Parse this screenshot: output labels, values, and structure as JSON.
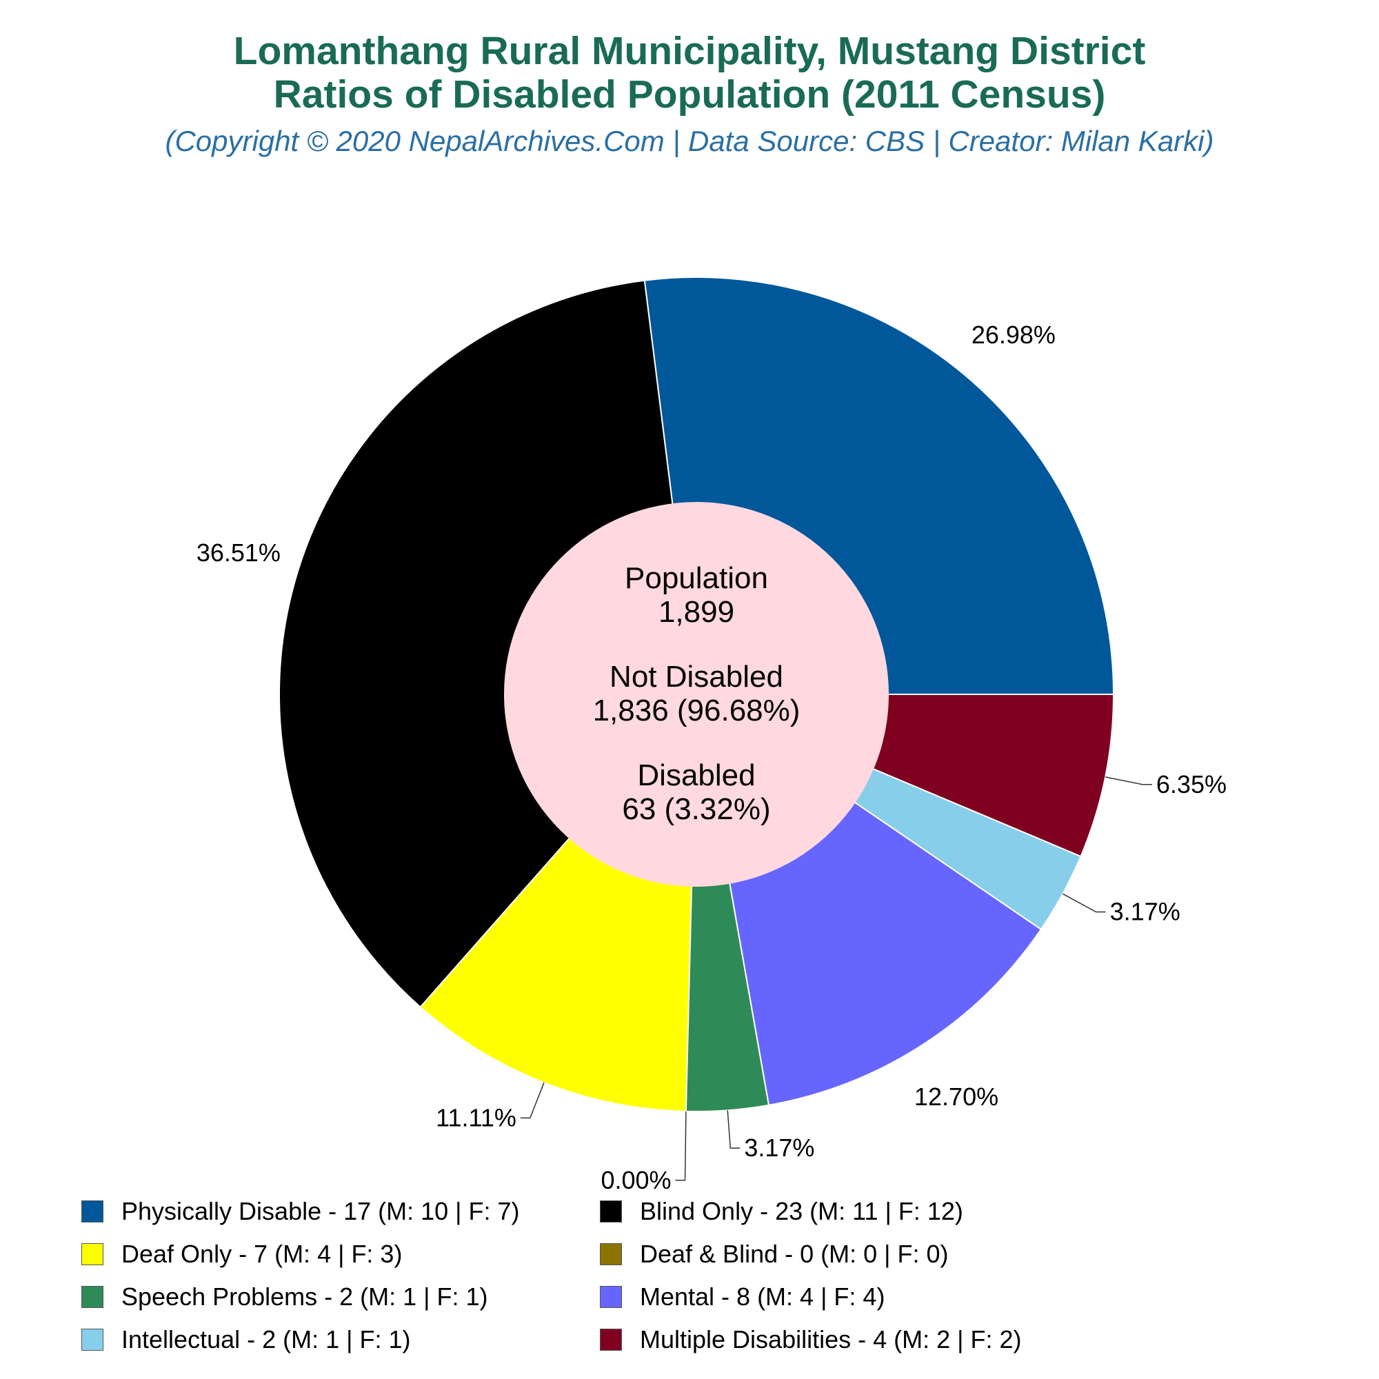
{
  "header": {
    "title_line_1": "Lomanthang Rural Municipality, Mustang District",
    "title_line_2": "Ratios of Disabled Population (2011 Census)",
    "subtitle": "(Copyright © 2020 NepalArchives.Com | Data Source: CBS | Creator: Milan Karki)"
  },
  "center": {
    "population_label": "Population",
    "population_value": "1,899",
    "not_disabled_label": "Not Disabled",
    "not_disabled_value": "1,836 (96.68%)",
    "disabled_label": "Disabled",
    "disabled_value": "63 (3.32%)"
  },
  "chart_data": {
    "type": "pie",
    "categories": [
      "Physically Disable",
      "Blind Only",
      "Deaf Only",
      "Deaf & Blind",
      "Speech Problems",
      "Mental",
      "Intellectual",
      "Multiple Disabilities"
    ],
    "values": [
      17,
      23,
      7,
      0,
      2,
      8,
      2,
      4
    ],
    "percent_labels": [
      "26.98%",
      "36.51%",
      "11.11%",
      "0.00%",
      "3.17%",
      "12.70%",
      "3.17%",
      "6.35%"
    ],
    "colors": [
      "#00589b",
      "#000000",
      "#ffff00",
      "#8b7500",
      "#2e8b57",
      "#6666ff",
      "#87ceeb",
      "#800020"
    ],
    "center_color": "#ffd9df",
    "legend": [
      {
        "label": "Physically Disable - 17 (M: 10 | F: 7)",
        "color": "#00589b"
      },
      {
        "label": "Blind Only - 23 (M: 11 | F: 12)",
        "color": "#000000"
      },
      {
        "label": "Deaf Only - 7 (M: 4 | F: 3)",
        "color": "#ffff00"
      },
      {
        "label": "Deaf & Blind - 0 (M: 0 | F: 0)",
        "color": "#8b7500"
      },
      {
        "label": "Speech Problems - 2 (M: 1 | F: 1)",
        "color": "#2e8b57"
      },
      {
        "label": "Mental - 8 (M: 4 | F: 4)",
        "color": "#6666ff"
      },
      {
        "label": "Intellectual - 2 (M: 1 | F: 1)",
        "color": "#87ceeb"
      },
      {
        "label": "Multiple Disabilities - 4 (M: 2 | F: 2)",
        "color": "#800020"
      }
    ],
    "legend_placement": "bottom"
  }
}
